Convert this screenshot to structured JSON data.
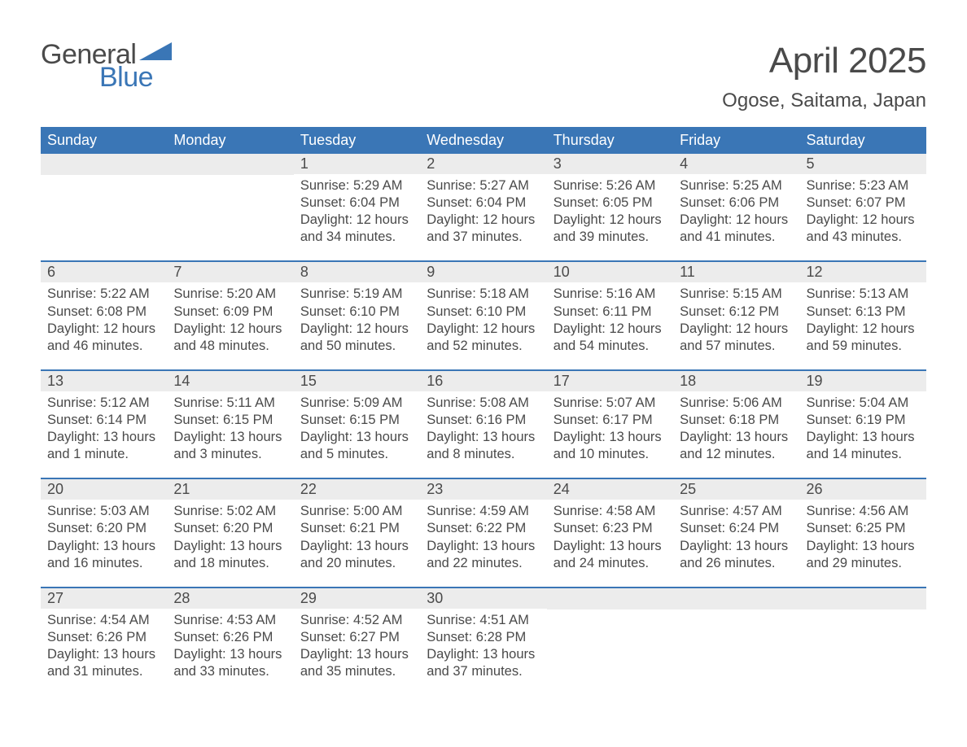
{
  "logo": {
    "general": "General",
    "blue": "Blue"
  },
  "title": "April 2025",
  "location": "Ogose, Saitama, Japan",
  "colors": {
    "header_bg": "#3a76b6",
    "header_text": "#ffffff",
    "daynum_bg": "#ececec",
    "text": "#4a4a4a",
    "page_bg": "#ffffff",
    "week_divider": "#3a76b6",
    "logo_blue": "#3a76b6"
  },
  "typography": {
    "title_fontsize": 44,
    "location_fontsize": 24,
    "dayhead_fontsize": 18,
    "daynum_fontsize": 18,
    "body_fontsize": 16.5,
    "font_family": "Arial"
  },
  "day_headers": [
    "Sunday",
    "Monday",
    "Tuesday",
    "Wednesday",
    "Thursday",
    "Friday",
    "Saturday"
  ],
  "weeks": [
    [
      {
        "num": "",
        "sunrise": "",
        "sunset": "",
        "daylight": ""
      },
      {
        "num": "",
        "sunrise": "",
        "sunset": "",
        "daylight": ""
      },
      {
        "num": "1",
        "sunrise": "Sunrise: 5:29 AM",
        "sunset": "Sunset: 6:04 PM",
        "daylight": "Daylight: 12 hours and 34 minutes."
      },
      {
        "num": "2",
        "sunrise": "Sunrise: 5:27 AM",
        "sunset": "Sunset: 6:04 PM",
        "daylight": "Daylight: 12 hours and 37 minutes."
      },
      {
        "num": "3",
        "sunrise": "Sunrise: 5:26 AM",
        "sunset": "Sunset: 6:05 PM",
        "daylight": "Daylight: 12 hours and 39 minutes."
      },
      {
        "num": "4",
        "sunrise": "Sunrise: 5:25 AM",
        "sunset": "Sunset: 6:06 PM",
        "daylight": "Daylight: 12 hours and 41 minutes."
      },
      {
        "num": "5",
        "sunrise": "Sunrise: 5:23 AM",
        "sunset": "Sunset: 6:07 PM",
        "daylight": "Daylight: 12 hours and 43 minutes."
      }
    ],
    [
      {
        "num": "6",
        "sunrise": "Sunrise: 5:22 AM",
        "sunset": "Sunset: 6:08 PM",
        "daylight": "Daylight: 12 hours and 46 minutes."
      },
      {
        "num": "7",
        "sunrise": "Sunrise: 5:20 AM",
        "sunset": "Sunset: 6:09 PM",
        "daylight": "Daylight: 12 hours and 48 minutes."
      },
      {
        "num": "8",
        "sunrise": "Sunrise: 5:19 AM",
        "sunset": "Sunset: 6:10 PM",
        "daylight": "Daylight: 12 hours and 50 minutes."
      },
      {
        "num": "9",
        "sunrise": "Sunrise: 5:18 AM",
        "sunset": "Sunset: 6:10 PM",
        "daylight": "Daylight: 12 hours and 52 minutes."
      },
      {
        "num": "10",
        "sunrise": "Sunrise: 5:16 AM",
        "sunset": "Sunset: 6:11 PM",
        "daylight": "Daylight: 12 hours and 54 minutes."
      },
      {
        "num": "11",
        "sunrise": "Sunrise: 5:15 AM",
        "sunset": "Sunset: 6:12 PM",
        "daylight": "Daylight: 12 hours and 57 minutes."
      },
      {
        "num": "12",
        "sunrise": "Sunrise: 5:13 AM",
        "sunset": "Sunset: 6:13 PM",
        "daylight": "Daylight: 12 hours and 59 minutes."
      }
    ],
    [
      {
        "num": "13",
        "sunrise": "Sunrise: 5:12 AM",
        "sunset": "Sunset: 6:14 PM",
        "daylight": "Daylight: 13 hours and 1 minute."
      },
      {
        "num": "14",
        "sunrise": "Sunrise: 5:11 AM",
        "sunset": "Sunset: 6:15 PM",
        "daylight": "Daylight: 13 hours and 3 minutes."
      },
      {
        "num": "15",
        "sunrise": "Sunrise: 5:09 AM",
        "sunset": "Sunset: 6:15 PM",
        "daylight": "Daylight: 13 hours and 5 minutes."
      },
      {
        "num": "16",
        "sunrise": "Sunrise: 5:08 AM",
        "sunset": "Sunset: 6:16 PM",
        "daylight": "Daylight: 13 hours and 8 minutes."
      },
      {
        "num": "17",
        "sunrise": "Sunrise: 5:07 AM",
        "sunset": "Sunset: 6:17 PM",
        "daylight": "Daylight: 13 hours and 10 minutes."
      },
      {
        "num": "18",
        "sunrise": "Sunrise: 5:06 AM",
        "sunset": "Sunset: 6:18 PM",
        "daylight": "Daylight: 13 hours and 12 minutes."
      },
      {
        "num": "19",
        "sunrise": "Sunrise: 5:04 AM",
        "sunset": "Sunset: 6:19 PM",
        "daylight": "Daylight: 13 hours and 14 minutes."
      }
    ],
    [
      {
        "num": "20",
        "sunrise": "Sunrise: 5:03 AM",
        "sunset": "Sunset: 6:20 PM",
        "daylight": "Daylight: 13 hours and 16 minutes."
      },
      {
        "num": "21",
        "sunrise": "Sunrise: 5:02 AM",
        "sunset": "Sunset: 6:20 PM",
        "daylight": "Daylight: 13 hours and 18 minutes."
      },
      {
        "num": "22",
        "sunrise": "Sunrise: 5:00 AM",
        "sunset": "Sunset: 6:21 PM",
        "daylight": "Daylight: 13 hours and 20 minutes."
      },
      {
        "num": "23",
        "sunrise": "Sunrise: 4:59 AM",
        "sunset": "Sunset: 6:22 PM",
        "daylight": "Daylight: 13 hours and 22 minutes."
      },
      {
        "num": "24",
        "sunrise": "Sunrise: 4:58 AM",
        "sunset": "Sunset: 6:23 PM",
        "daylight": "Daylight: 13 hours and 24 minutes."
      },
      {
        "num": "25",
        "sunrise": "Sunrise: 4:57 AM",
        "sunset": "Sunset: 6:24 PM",
        "daylight": "Daylight: 13 hours and 26 minutes."
      },
      {
        "num": "26",
        "sunrise": "Sunrise: 4:56 AM",
        "sunset": "Sunset: 6:25 PM",
        "daylight": "Daylight: 13 hours and 29 minutes."
      }
    ],
    [
      {
        "num": "27",
        "sunrise": "Sunrise: 4:54 AM",
        "sunset": "Sunset: 6:26 PM",
        "daylight": "Daylight: 13 hours and 31 minutes."
      },
      {
        "num": "28",
        "sunrise": "Sunrise: 4:53 AM",
        "sunset": "Sunset: 6:26 PM",
        "daylight": "Daylight: 13 hours and 33 minutes."
      },
      {
        "num": "29",
        "sunrise": "Sunrise: 4:52 AM",
        "sunset": "Sunset: 6:27 PM",
        "daylight": "Daylight: 13 hours and 35 minutes."
      },
      {
        "num": "30",
        "sunrise": "Sunrise: 4:51 AM",
        "sunset": "Sunset: 6:28 PM",
        "daylight": "Daylight: 13 hours and 37 minutes."
      },
      {
        "num": "",
        "sunrise": "",
        "sunset": "",
        "daylight": ""
      },
      {
        "num": "",
        "sunrise": "",
        "sunset": "",
        "daylight": ""
      },
      {
        "num": "",
        "sunrise": "",
        "sunset": "",
        "daylight": ""
      }
    ]
  ]
}
